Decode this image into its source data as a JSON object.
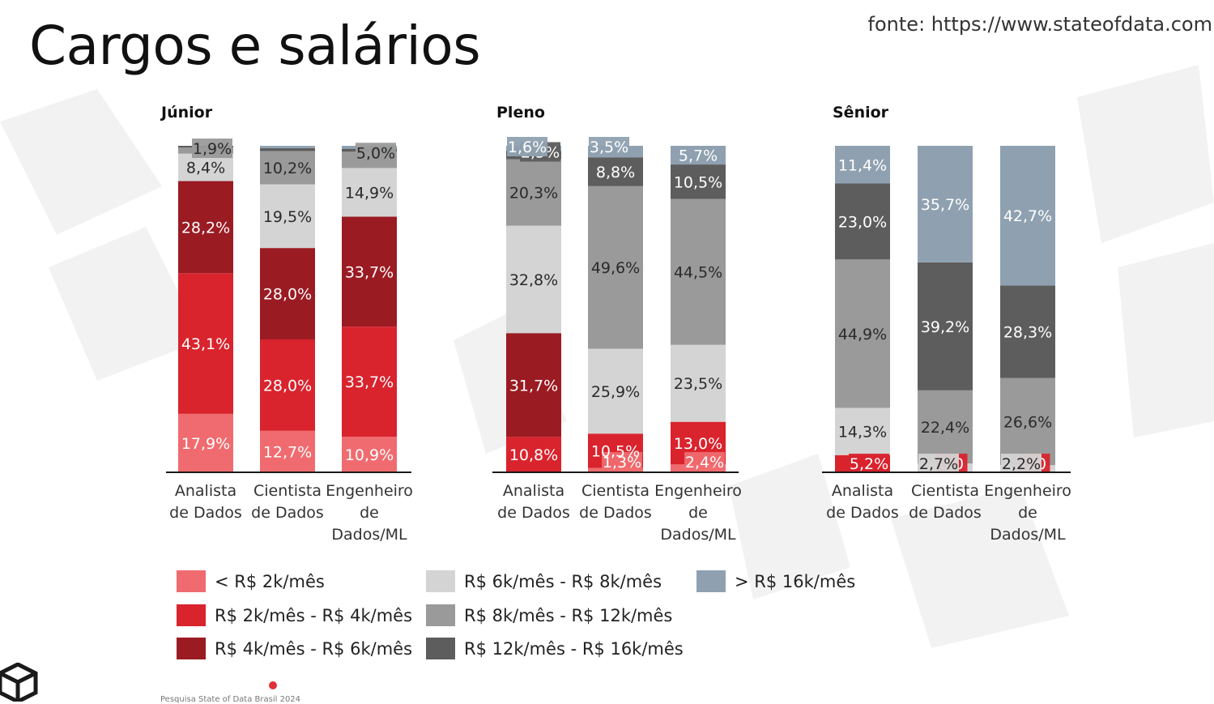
{
  "header": {
    "title": "Cargos e salários",
    "source": "fonte: https://www.stateofdata.com"
  },
  "footnote": "Pesquisa State of Data Brasil 2024",
  "legend": [
    {
      "label": "< R$ 2k/mês",
      "color": "#f06b6f"
    },
    {
      "label": "R$ 2k/mês - R$ 4k/mês",
      "color": "#d9232d"
    },
    {
      "label": "R$ 4k/mês - R$ 6k/mês",
      "color": "#9b1b23"
    },
    {
      "label": "R$ 6k/mês - R$ 8k/mês",
      "color": "#d4d4d4"
    },
    {
      "label": "R$ 8k/mês - R$ 12k/mês",
      "color": "#9a9a9a"
    },
    {
      "label": "R$ 12k/mês - R$ 16k/mês",
      "color": "#5d5d5d"
    },
    {
      "label": "> R$ 16k/mês",
      "color": "#8fa1b1"
    }
  ],
  "chart_data": [
    {
      "type": "bar",
      "stacked": true,
      "title": "Júnior",
      "categories": [
        "Analista de Dados",
        "Cientista de Dados",
        "Engenheiro de Dados/ML"
      ],
      "series": [
        {
          "name": "< R$ 2k/mês",
          "values": [
            17.9,
            12.7,
            10.9
          ]
        },
        {
          "name": "R$ 2k/mês - R$ 4k/mês",
          "values": [
            43.1,
            28.0,
            33.7
          ]
        },
        {
          "name": "R$ 4k/mês - R$ 6k/mês",
          "values": [
            28.2,
            28.0,
            33.7
          ]
        },
        {
          "name": "R$ 6k/mês - R$ 8k/mês",
          "values": [
            8.4,
            19.5,
            14.9
          ]
        },
        {
          "name": "R$ 8k/mês - R$ 12k/mês",
          "values": [
            1.9,
            10.2,
            5.0
          ]
        },
        {
          "name": "R$ 12k/mês - R$ 16k/mês",
          "values": [
            0.5,
            0.9,
            0.9
          ]
        },
        {
          "name": "> R$ 16k/mês",
          "values": [
            0,
            0.7,
            0.9
          ]
        }
      ],
      "labels": [
        [
          "17,9%",
          "43,1%",
          "28,2%",
          "8,4%",
          "1,9%",
          "",
          ""
        ],
        [
          "12,7%",
          "28,0%",
          "28,0%",
          "19,5%",
          "10,2%",
          "",
          ""
        ],
        [
          "10,9%",
          "33,7%",
          "33,7%",
          "14,9%",
          "5,0%",
          "",
          ""
        ]
      ],
      "ylim": [
        0,
        100
      ]
    },
    {
      "type": "bar",
      "stacked": true,
      "title": "Pleno",
      "categories": [
        "Analista de Dados",
        "Cientista de Dados",
        "Engenheiro de Dados/ML"
      ],
      "series": [
        {
          "name": "< R$ 2k/mês",
          "values": [
            0,
            1.3,
            2.4
          ]
        },
        {
          "name": "R$ 2k/mês - R$ 4k/mês",
          "values": [
            10.8,
            10.5,
            13.0
          ]
        },
        {
          "name": "R$ 4k/mês - R$ 6k/mês",
          "values": [
            31.7,
            0,
            0
          ]
        },
        {
          "name": "R$ 6k/mês - R$ 8k/mês",
          "values": [
            32.8,
            25.9,
            23.5
          ]
        },
        {
          "name": "R$ 8k/mês - R$ 12k/mês",
          "values": [
            20.3,
            49.6,
            44.5
          ]
        },
        {
          "name": "R$ 12k/mês - R$ 16k/mês",
          "values": [
            2.5,
            8.8,
            10.5
          ]
        },
        {
          "name": "> R$ 16k/mês",
          "values": [
            1.6,
            3.5,
            5.7
          ]
        }
      ],
      "labels": [
        [
          "",
          "10,8%",
          "31,7%",
          "32,8%",
          "20,3%",
          "2,5%",
          "1,6%"
        ],
        [
          "1,3%",
          "10,5%",
          "",
          "25,9%",
          "49,6%",
          "8,8%",
          "3,5%"
        ],
        [
          "2,4%",
          "13,0%",
          "",
          "23,5%",
          "44,5%",
          "10,5%",
          "5,7%"
        ]
      ],
      "ylim": [
        0,
        100
      ]
    },
    {
      "type": "bar",
      "stacked": true,
      "title": "Sênior",
      "categories": [
        "Analista de Dados",
        "Cientista de Dados",
        "Engenheiro de Dados/ML"
      ],
      "series": [
        {
          "name": "< R$ 2k/mês",
          "values": [
            0,
            0,
            0
          ]
        },
        {
          "name": "R$ 2k/mês - R$ 4k/mês",
          "values": [
            5.2,
            0.0,
            0.0
          ]
        },
        {
          "name": "R$ 4k/mês - R$ 6k/mês",
          "values": [
            0,
            0,
            0
          ]
        },
        {
          "name": "R$ 6k/mês - R$ 8k/mês",
          "values": [
            14.3,
            2.7,
            2.2
          ]
        },
        {
          "name": "R$ 8k/mês - R$ 12k/mês",
          "values": [
            44.9,
            22.4,
            26.6
          ]
        },
        {
          "name": "R$ 12k/mês - R$ 16k/mês",
          "values": [
            23.0,
            39.2,
            28.3
          ]
        },
        {
          "name": "> R$ 16k/mês",
          "values": [
            11.4,
            35.7,
            42.7
          ]
        }
      ],
      "labels": [
        [
          "",
          "5,2%",
          "",
          "14,3%",
          "44,9%",
          "23,0%",
          "11,4%"
        ],
        [
          "",
          "0,0",
          "",
          "2,7%",
          "22,4%",
          "39,2%",
          "35,7%"
        ],
        [
          "",
          "0,0",
          "",
          "2,2%",
          "26,6%",
          "28,3%",
          "42,7%"
        ]
      ],
      "ylim": [
        0,
        100
      ]
    }
  ]
}
